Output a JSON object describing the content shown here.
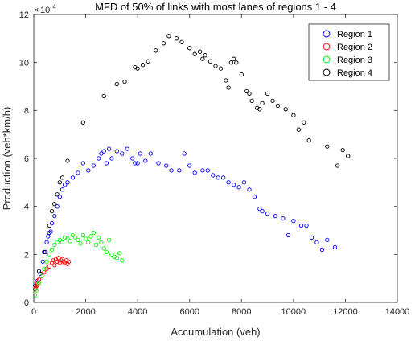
{
  "chart_data": {
    "type": "scatter",
    "title": "MFD of 50% of links with most lanes of regions 1 - 4",
    "xlabel": "Accumulation (veh)",
    "ylabel": "Production (veh*km/h)",
    "y_exponent_base": "10",
    "y_exponent": "4",
    "xlim": [
      0,
      14000
    ],
    "ylim": [
      0,
      120000
    ],
    "xticks": [
      0,
      2000,
      4000,
      6000,
      8000,
      10000,
      12000,
      14000
    ],
    "xtick_labels": [
      "0",
      "2000",
      "4000",
      "6000",
      "8000",
      "10000",
      "12000",
      "14000"
    ],
    "yticks": [
      0,
      20000,
      40000,
      60000,
      80000,
      100000,
      120000
    ],
    "ytick_labels": [
      "0",
      "2",
      "4",
      "6",
      "8",
      "10",
      "12"
    ],
    "grid": false,
    "legend_position": "top-right",
    "series": [
      {
        "name": "Region 1",
        "color": "#0000ff",
        "points": [
          [
            50,
            7000
          ],
          [
            150,
            9000
          ],
          [
            250,
            12000
          ],
          [
            350,
            17000
          ],
          [
            450,
            21000
          ],
          [
            500,
            25000
          ],
          [
            550,
            27500
          ],
          [
            600,
            29000
          ],
          [
            650,
            29500
          ],
          [
            700,
            33000
          ],
          [
            800,
            36000
          ],
          [
            900,
            40000
          ],
          [
            1000,
            44000
          ],
          [
            1100,
            47000
          ],
          [
            1200,
            49000
          ],
          [
            1300,
            50000
          ],
          [
            1500,
            52000
          ],
          [
            1700,
            54000
          ],
          [
            1900,
            58000
          ],
          [
            2100,
            55000
          ],
          [
            2300,
            57000
          ],
          [
            2500,
            60000
          ],
          [
            2600,
            62000
          ],
          [
            2700,
            63000
          ],
          [
            2800,
            58000
          ],
          [
            2900,
            64000
          ],
          [
            3000,
            60000
          ],
          [
            3200,
            63000
          ],
          [
            3400,
            62000
          ],
          [
            3600,
            64000
          ],
          [
            3800,
            60000
          ],
          [
            3900,
            58000
          ],
          [
            4000,
            58000
          ],
          [
            4100,
            62000
          ],
          [
            4300,
            59000
          ],
          [
            4500,
            62000
          ],
          [
            4800,
            58000
          ],
          [
            5100,
            57000
          ],
          [
            5300,
            55000
          ],
          [
            5600,
            55000
          ],
          [
            5800,
            62000
          ],
          [
            6000,
            57000
          ],
          [
            6200,
            54000
          ],
          [
            6500,
            55000
          ],
          [
            6700,
            55000
          ],
          [
            6900,
            53000
          ],
          [
            7100,
            52000
          ],
          [
            7300,
            52000
          ],
          [
            7500,
            50000
          ],
          [
            7700,
            49000
          ],
          [
            7900,
            48000
          ],
          [
            8100,
            50000
          ],
          [
            8300,
            47000
          ],
          [
            8500,
            44000
          ],
          [
            8700,
            39000
          ],
          [
            8800,
            38000
          ],
          [
            9000,
            37000
          ],
          [
            9300,
            36000
          ],
          [
            9600,
            35000
          ],
          [
            9800,
            28000
          ],
          [
            10000,
            34000
          ],
          [
            10300,
            32000
          ],
          [
            10500,
            32000
          ],
          [
            10700,
            27000
          ],
          [
            10900,
            25000
          ],
          [
            11100,
            22000
          ],
          [
            11300,
            26000
          ],
          [
            11600,
            23000
          ]
        ]
      },
      {
        "name": "Region 2",
        "color": "#ff0000",
        "points": [
          [
            50,
            5500
          ],
          [
            80,
            6500
          ],
          [
            120,
            7000
          ],
          [
            150,
            8000
          ],
          [
            200,
            9500
          ],
          [
            300,
            11000
          ],
          [
            400,
            12500
          ],
          [
            500,
            14000
          ],
          [
            600,
            15000
          ],
          [
            700,
            16500
          ],
          [
            750,
            17500
          ],
          [
            800,
            15500
          ],
          [
            850,
            18000
          ],
          [
            900,
            17000
          ],
          [
            950,
            18500
          ],
          [
            1000,
            16500
          ],
          [
            1050,
            17500
          ],
          [
            1100,
            18000
          ],
          [
            1150,
            17000
          ],
          [
            1200,
            16500
          ],
          [
            1250,
            17500
          ],
          [
            1300,
            16000
          ],
          [
            1350,
            17000
          ]
        ]
      },
      {
        "name": "Region 3",
        "color": "#00ff00",
        "points": [
          [
            50,
            3000
          ],
          [
            100,
            5000
          ],
          [
            200,
            8000
          ],
          [
            300,
            11000
          ],
          [
            400,
            14000
          ],
          [
            500,
            17000
          ],
          [
            600,
            20000
          ],
          [
            700,
            22000
          ],
          [
            800,
            24000
          ],
          [
            900,
            25000
          ],
          [
            1000,
            26000
          ],
          [
            1100,
            25000
          ],
          [
            1200,
            27000
          ],
          [
            1300,
            26500
          ],
          [
            1400,
            25500
          ],
          [
            1500,
            28000
          ],
          [
            1600,
            27000
          ],
          [
            1700,
            26000
          ],
          [
            1800,
            24500
          ],
          [
            1900,
            28000
          ],
          [
            2000,
            26500
          ],
          [
            2100,
            25000
          ],
          [
            2200,
            27500
          ],
          [
            2300,
            29000
          ],
          [
            2400,
            24000
          ],
          [
            2500,
            27000
          ],
          [
            2600,
            25000
          ],
          [
            2700,
            22500
          ],
          [
            2800,
            21000
          ],
          [
            2900,
            26000
          ],
          [
            3000,
            20000
          ],
          [
            3100,
            19000
          ],
          [
            3200,
            18500
          ],
          [
            3300,
            20500
          ],
          [
            3400,
            17500
          ]
        ]
      },
      {
        "name": "Region 4",
        "color": "#000000",
        "points": [
          [
            200,
            13000
          ],
          [
            400,
            21000
          ],
          [
            600,
            32000
          ],
          [
            700,
            38000
          ],
          [
            800,
            41000
          ],
          [
            900,
            45000
          ],
          [
            1000,
            50000
          ],
          [
            1100,
            52000
          ],
          [
            1300,
            59000
          ],
          [
            1900,
            75000
          ],
          [
            2700,
            86000
          ],
          [
            3200,
            91000
          ],
          [
            3500,
            92000
          ],
          [
            3900,
            98000
          ],
          [
            4000,
            97500
          ],
          [
            4200,
            99000
          ],
          [
            4400,
            100500
          ],
          [
            4700,
            105000
          ],
          [
            5000,
            108000
          ],
          [
            5200,
            111000
          ],
          [
            5500,
            110000
          ],
          [
            5700,
            108500
          ],
          [
            6000,
            106000
          ],
          [
            6200,
            103500
          ],
          [
            6400,
            104500
          ],
          [
            6500,
            101500
          ],
          [
            6600,
            103000
          ],
          [
            6800,
            100500
          ],
          [
            7000,
            98500
          ],
          [
            7200,
            97500
          ],
          [
            7400,
            92500
          ],
          [
            7500,
            89500
          ],
          [
            7600,
            100000
          ],
          [
            7700,
            101500
          ],
          [
            7800,
            100000
          ],
          [
            8000,
            95000
          ],
          [
            8200,
            88000
          ],
          [
            8300,
            87000
          ],
          [
            8400,
            84000
          ],
          [
            8600,
            81000
          ],
          [
            8700,
            80500
          ],
          [
            8800,
            83000
          ],
          [
            9000,
            87000
          ],
          [
            9200,
            84000
          ],
          [
            9400,
            82000
          ],
          [
            9700,
            80500
          ],
          [
            10000,
            78000
          ],
          [
            10200,
            72000
          ],
          [
            10400,
            75000
          ],
          [
            10600,
            67500
          ],
          [
            11300,
            65000
          ],
          [
            11700,
            57000
          ],
          [
            11900,
            63500
          ],
          [
            12100,
            61000
          ]
        ]
      }
    ]
  }
}
